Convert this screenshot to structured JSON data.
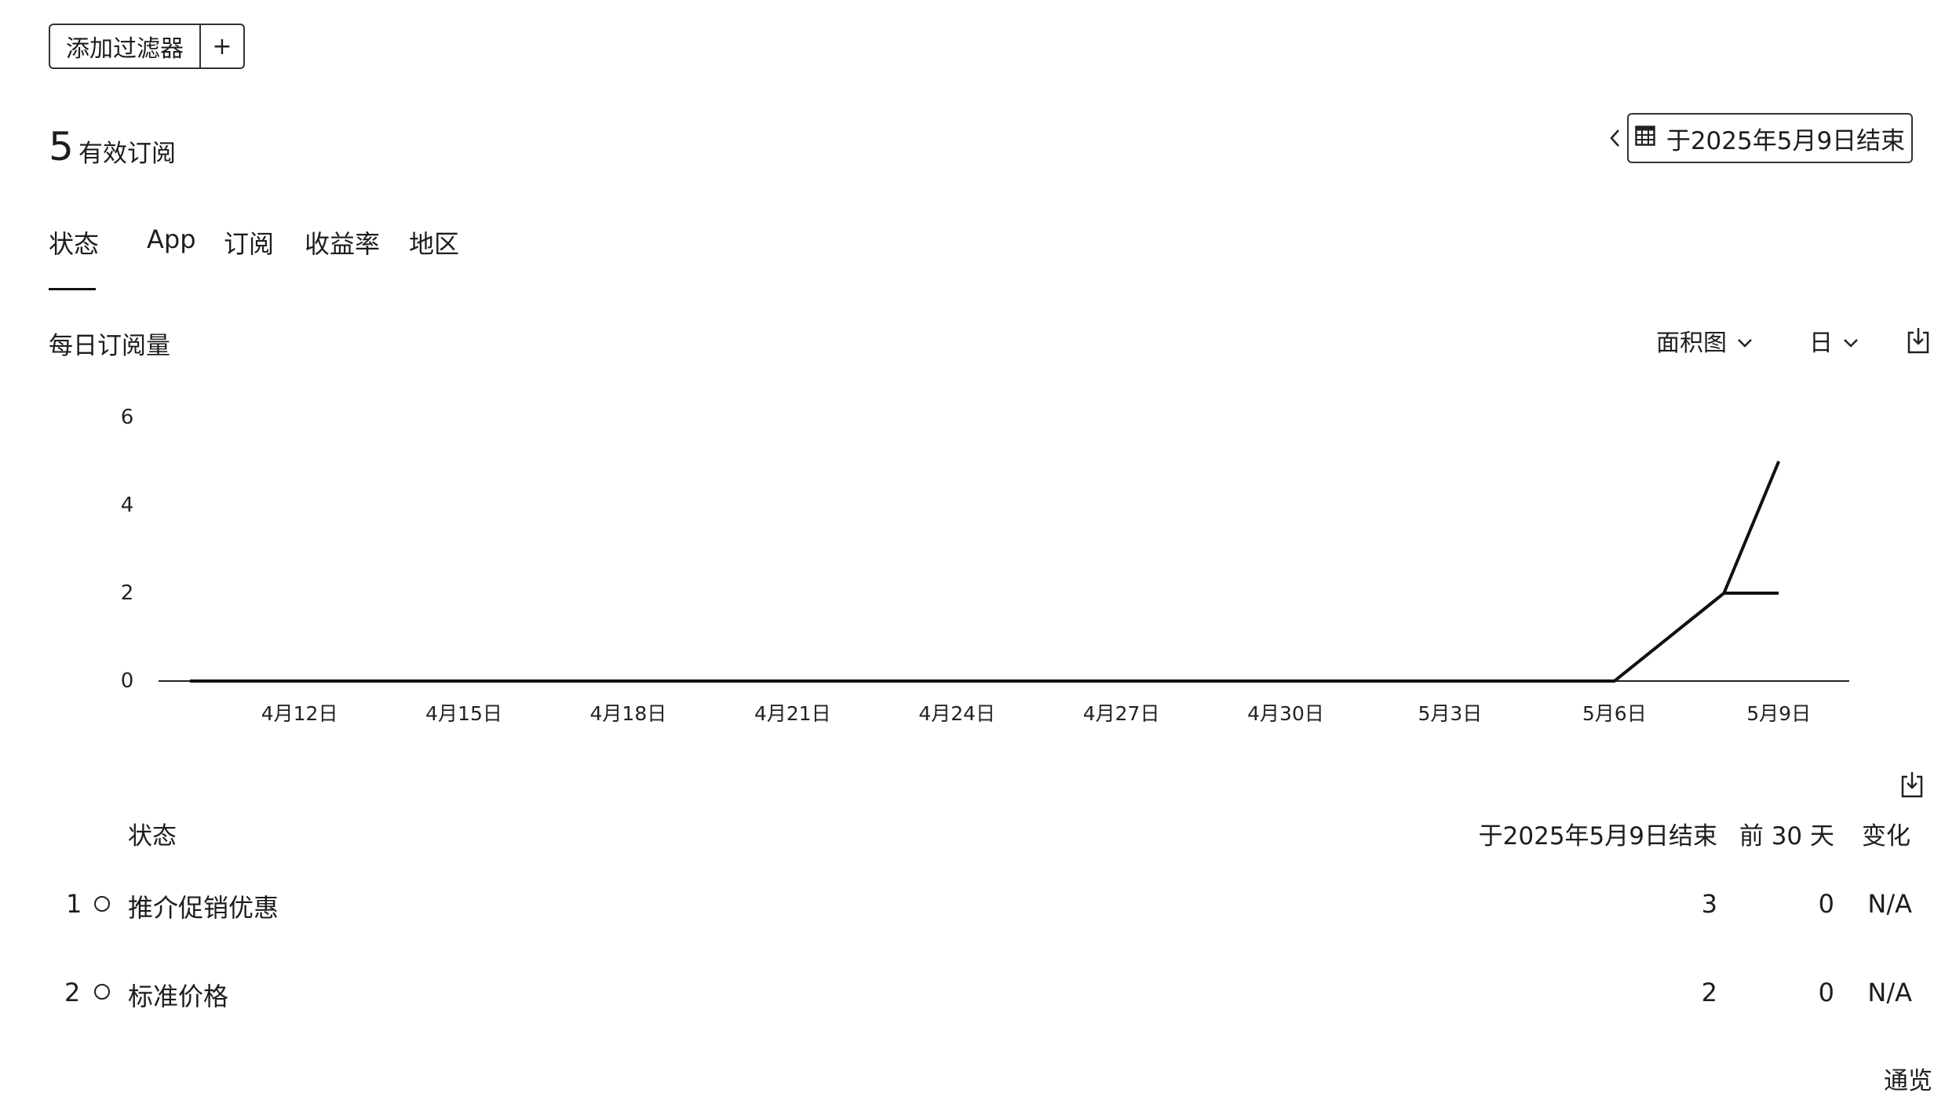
{
  "toolbar": {
    "add_filter_label": "添加过滤器",
    "add_filter_plus": "+"
  },
  "summary": {
    "count": "5",
    "label": "有效订阅"
  },
  "date_range": {
    "label": "于2025年5月9日结束",
    "prev_icon": "chevron-left-icon",
    "calendar_icon": "calendar-icon"
  },
  "tabs": [
    {
      "label": "状态",
      "active": true
    },
    {
      "label": "App",
      "active": false
    },
    {
      "label": "订阅",
      "active": false
    },
    {
      "label": "收益率",
      "active": false
    },
    {
      "label": "地区",
      "active": false
    }
  ],
  "chart_header": {
    "title": "每日订阅量",
    "chart_type_select": "面积图",
    "granularity_select": "日",
    "download_icon": "download-icon"
  },
  "chart_data": {
    "type": "line",
    "x": [
      "4月10日",
      "4月11日",
      "4月12日",
      "4月13日",
      "4月14日",
      "4月15日",
      "4月16日",
      "4月17日",
      "4月18日",
      "4月19日",
      "4月20日",
      "4月21日",
      "4月22日",
      "4月23日",
      "4月24日",
      "4月25日",
      "4月26日",
      "4月27日",
      "4月28日",
      "4月29日",
      "4月30日",
      "5月1日",
      "5月2日",
      "5月3日",
      "5月4日",
      "5月5日",
      "5月6日",
      "5月7日",
      "5月8日",
      "5月9日"
    ],
    "x_tick_labels": [
      "4月12日",
      "4月15日",
      "4月18日",
      "4月21日",
      "4月24日",
      "4月27日",
      "4月30日",
      "5月3日",
      "5月6日",
      "5月9日"
    ],
    "y_tick_labels": [
      "0",
      "2",
      "4",
      "6"
    ],
    "ylim": [
      0,
      6
    ],
    "series": [
      {
        "values": [
          0,
          0,
          0,
          0,
          0,
          0,
          0,
          0,
          0,
          0,
          0,
          0,
          0,
          0,
          0,
          0,
          0,
          0,
          0,
          0,
          0,
          0,
          0,
          0,
          0,
          0,
          0,
          1,
          2,
          5
        ]
      },
      {
        "values": [
          0,
          0,
          0,
          0,
          0,
          0,
          0,
          0,
          0,
          0,
          0,
          0,
          0,
          0,
          0,
          0,
          0,
          0,
          0,
          0,
          0,
          0,
          0,
          0,
          0,
          0,
          0,
          1,
          2,
          2
        ]
      }
    ],
    "title": "",
    "xlabel": "",
    "ylabel": "",
    "grid": false
  },
  "table": {
    "download_icon": "download-icon",
    "headers": {
      "name": "状态",
      "current": "于2025年5月9日结束",
      "previous": "前 30 天",
      "change": "变化"
    },
    "rows": [
      {
        "rank": "1",
        "name": "推介促销优惠",
        "current": "3",
        "previous": "0",
        "change": "N/A"
      },
      {
        "rank": "2",
        "name": "标准价格",
        "current": "2",
        "previous": "0",
        "change": "N/A"
      }
    ]
  },
  "footer": {
    "overview_link": "通览"
  }
}
